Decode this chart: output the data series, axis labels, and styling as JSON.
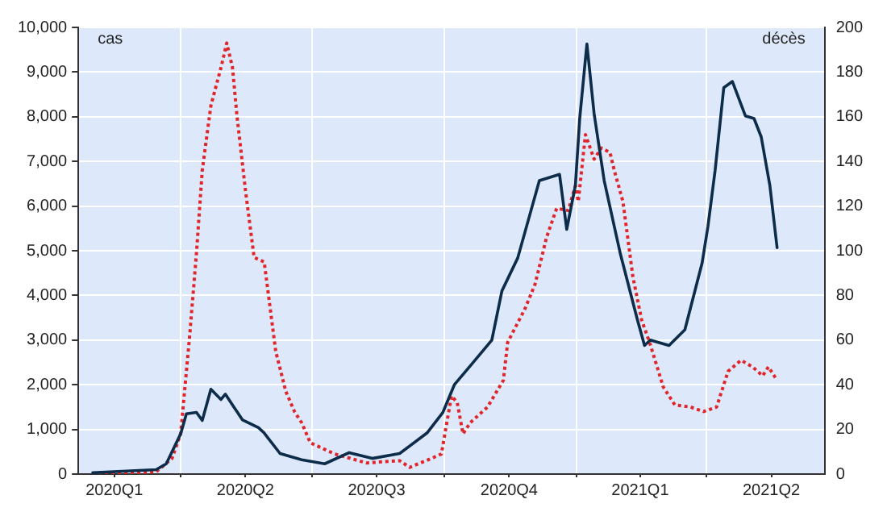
{
  "chart_data": {
    "type": "line",
    "ylabel": "cas",
    "y2label": "décès",
    "xlim": [
      "2020-01-21",
      "2021-06-22"
    ],
    "xticks": [
      {
        "value": "2020-02-15",
        "label": "2020Q1"
      },
      {
        "value": "2020-04-01",
        "label": null
      },
      {
        "value": "2020-05-16",
        "label": "2020Q2"
      },
      {
        "value": "2020-07-01",
        "label": null
      },
      {
        "value": "2020-08-15",
        "label": "2020Q3"
      },
      {
        "value": "2020-10-01",
        "label": null
      },
      {
        "value": "2020-11-15",
        "label": "2020Q4"
      },
      {
        "value": "2021-01-01",
        "label": null
      },
      {
        "value": "2021-02-14",
        "label": "2021Q1"
      },
      {
        "value": "2021-04-01",
        "label": null
      },
      {
        "value": "2021-05-16",
        "label": "2021Q2"
      }
    ],
    "ylim": [
      0,
      10000
    ],
    "yticks": [
      {
        "value": 0,
        "label": "0"
      },
      {
        "value": 1000,
        "label": "1,000"
      },
      {
        "value": 2000,
        "label": "2,000"
      },
      {
        "value": 3000,
        "label": "3,000"
      },
      {
        "value": 4000,
        "label": "4,000"
      },
      {
        "value": 5000,
        "label": "5,000"
      },
      {
        "value": 6000,
        "label": "6,000"
      },
      {
        "value": 7000,
        "label": "7,000"
      },
      {
        "value": 8000,
        "label": "8,000"
      },
      {
        "value": 9000,
        "label": "9,000"
      },
      {
        "value": 10000,
        "label": "10,000"
      }
    ],
    "y2lim": [
      0,
      200
    ],
    "y2ticks": [
      0,
      20,
      40,
      60,
      80,
      100,
      120,
      140,
      160,
      180,
      200
    ],
    "grid": true,
    "legend": false,
    "marker": "none",
    "series": [
      {
        "color": "#0d2c4a",
        "line_style": "solid",
        "x": [
          "2020-01-31",
          "2020-03-15",
          "2020-03-22",
          "2020-04-01",
          "2020-04-05",
          "2020-04-12",
          "2020-04-16",
          "2020-04-22",
          "2020-04-29",
          "2020-05-02",
          "2020-05-08",
          "2020-05-14",
          "2020-05-25",
          "2020-05-29",
          "2020-06-09",
          "2020-06-24",
          "2020-07-10",
          "2020-07-27",
          "2020-08-12",
          "2020-08-31",
          "2020-09-19",
          "2020-09-30",
          "2020-10-08",
          "2020-10-19",
          "2020-11-03",
          "2020-11-10",
          "2020-11-21",
          "2020-12-06",
          "2020-12-20",
          "2020-12-25",
          "2020-12-31",
          "2021-01-03",
          "2021-01-08",
          "2021-01-13",
          "2021-01-20",
          "2021-01-31",
          "2021-02-12",
          "2021-02-17",
          "2021-02-21",
          "2021-03-06",
          "2021-03-17",
          "2021-03-29",
          "2021-04-02",
          "2021-04-07",
          "2021-04-13",
          "2021-04-19",
          "2021-04-28",
          "2021-05-04",
          "2021-05-09",
          "2021-05-15",
          "2021-05-20"
        ],
        "values": [
          30,
          100,
          230,
          900,
          1350,
          1380,
          1200,
          1900,
          1670,
          1790,
          1500,
          1210,
          1040,
          920,
          460,
          320,
          230,
          480,
          350,
          460,
          920,
          1380,
          2000,
          2420,
          3000,
          4100,
          4840,
          6570,
          6710,
          5480,
          6460,
          7960,
          9630,
          8070,
          6570,
          4960,
          3460,
          2880,
          3000,
          2880,
          3230,
          4730,
          5540,
          6800,
          8650,
          8790,
          8020,
          7960,
          7550,
          6460,
          5070
        ]
      },
      {
        "color": "#e0252b",
        "line_style": "dotted",
        "axis": "y2",
        "x": [
          "2020-02-04",
          "2020-03-15",
          "2020-03-26",
          "2020-04-01",
          "2020-04-07",
          "2020-04-12",
          "2020-04-16",
          "2020-04-22",
          "2020-04-29",
          "2020-05-03",
          "2020-05-07",
          "2020-05-10",
          "2020-05-16",
          "2020-05-22",
          "2020-05-29",
          "2020-06-06",
          "2020-06-13",
          "2020-06-19",
          "2020-06-24",
          "2020-06-30",
          "2020-07-17",
          "2020-08-08",
          "2020-08-31",
          "2020-09-07",
          "2020-09-22",
          "2020-09-29",
          "2020-10-06",
          "2020-10-10",
          "2020-10-14",
          "2020-10-19",
          "2020-10-31",
          "2020-11-11",
          "2020-11-14",
          "2020-11-26",
          "2020-12-03",
          "2020-12-11",
          "2020-12-18",
          "2020-12-26",
          "2020-12-31",
          "2021-01-02",
          "2021-01-07",
          "2021-01-13",
          "2021-01-18",
          "2021-01-24",
          "2021-01-27",
          "2021-02-02",
          "2021-02-09",
          "2021-02-15",
          "2021-02-21",
          "2021-03-02",
          "2021-03-10",
          "2021-03-21",
          "2021-03-30",
          "2021-04-08",
          "2021-04-16",
          "2021-04-25",
          "2021-05-03",
          "2021-05-10",
          "2021-05-14",
          "2021-05-19"
        ],
        "values": [
          0,
          1,
          7,
          18,
          60,
          99,
          136,
          165,
          182,
          193,
          182,
          161,
          127,
          97,
          95,
          55,
          37,
          28,
          23,
          14,
          9,
          5,
          6,
          3,
          7,
          9,
          35,
          32,
          18,
          23,
          30,
          42,
          59,
          74,
          85,
          106,
          119,
          118,
          129,
          122,
          152,
          141,
          146,
          144,
          136,
          122,
          88,
          69,
          58,
          39,
          31,
          30,
          28,
          30,
          46,
          51,
          48,
          44,
          48,
          43
        ]
      }
    ]
  }
}
